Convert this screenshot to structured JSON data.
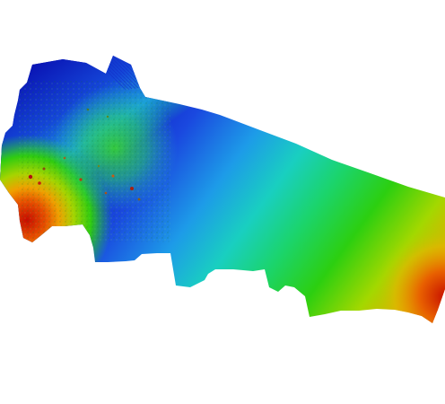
{
  "map": {
    "type": "bathymetry-colormap",
    "colormap": [
      "#0b1fc2",
      "#1858e6",
      "#16b4d8",
      "#1cd48a",
      "#22c81c",
      "#7fd600",
      "#d6c400",
      "#e86a00",
      "#c40a00"
    ],
    "background": "#ffffff",
    "legend": "none",
    "labels": "none"
  }
}
